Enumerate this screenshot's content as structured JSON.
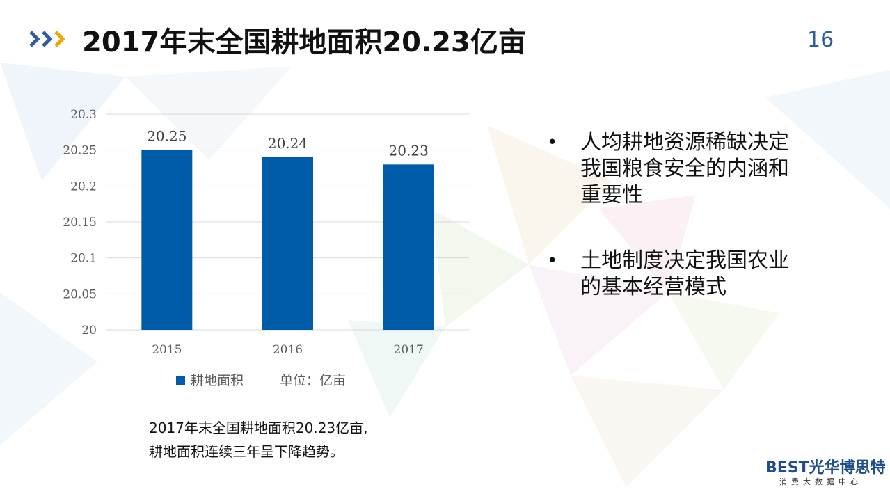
{
  "slide": {
    "title": "2017年末全国耕地面积20.23亿亩",
    "page_number": "16"
  },
  "chart_data": {
    "type": "bar",
    "categories": [
      "2015",
      "2016",
      "2017"
    ],
    "series": [
      {
        "name": "耕地面积",
        "values": [
          20.25,
          20.24,
          20.23
        ]
      }
    ],
    "data_labels": [
      "20.25",
      "20.24",
      "20.23"
    ],
    "y_ticks": [
      "20.3",
      "20.25",
      "20.2",
      "20.15",
      "20.1",
      "20.05",
      "20"
    ],
    "ylim": [
      20,
      20.3
    ],
    "grid": true,
    "legend": "bottom",
    "unit_note": "单位：亿亩",
    "bar_color": "#005ca8"
  },
  "bullets": [
    "人均耕地资源稀缺决定我国粮食安全的内涵和重要性",
    "土地制度决定我国农业的基本经营模式"
  ],
  "bullet_symbol": "•",
  "note_lines": [
    "2017年末全国耕地面积20.23亿亩,",
    "耕地面积连续三年呈下降趋势。"
  ],
  "logo": {
    "main": "BEST光华博思特",
    "sub": "消费大数据中心"
  },
  "colors": {
    "accent_blue": "#2e5d9b",
    "accent_orange": "#f0a500",
    "bar": "#005ca8"
  }
}
